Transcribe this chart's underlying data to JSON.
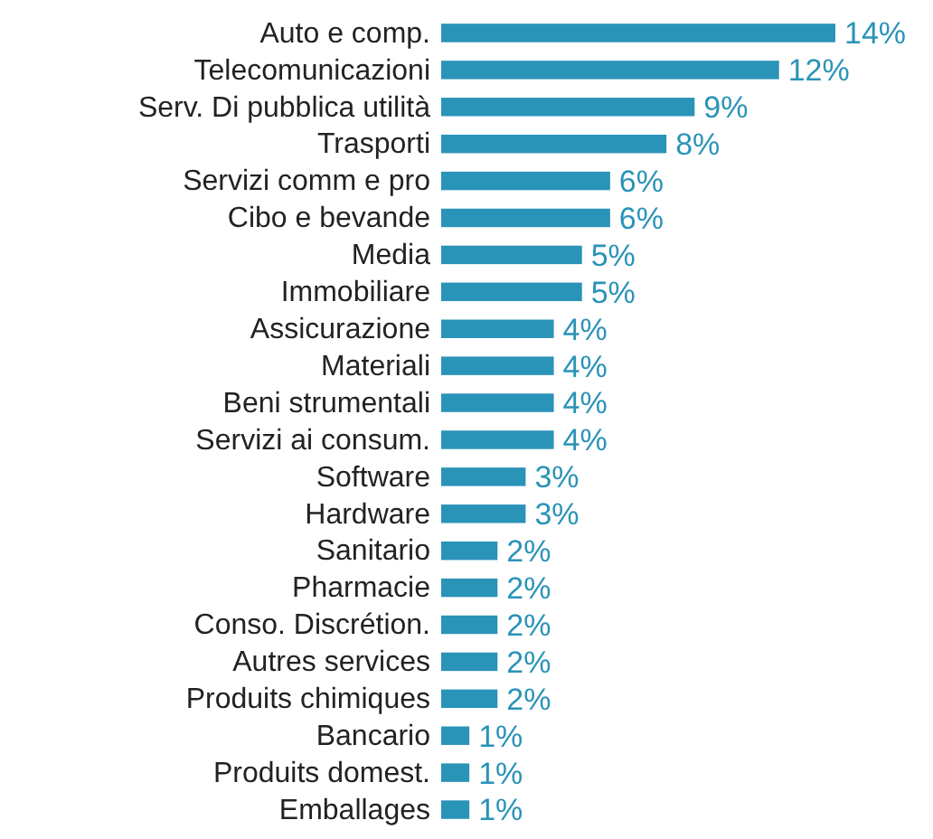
{
  "chart_data": {
    "type": "bar",
    "orientation": "horizontal",
    "categories": [
      "Auto e comp.",
      "Telecomunicazioni",
      "Serv. Di pubblica utilità",
      "Trasporti",
      "Servizi comm e pro",
      "Cibo e bevande",
      "Media",
      "Immobiliare",
      "Assicurazione",
      "Materiali",
      "Beni strumentali",
      "Servizi ai consum.",
      "Software",
      "Hardware",
      "Sanitario",
      "Pharmacie",
      "Conso. Discrétion.",
      "Autres services",
      "Produits chimiques",
      "Bancario",
      "Produits domest.",
      "Emballages"
    ],
    "values": [
      14,
      12,
      9,
      8,
      6,
      6,
      5,
      5,
      4,
      4,
      4,
      4,
      3,
      3,
      2,
      2,
      2,
      2,
      2,
      1,
      1,
      1
    ],
    "value_labels": [
      "14%",
      "12%",
      "9%",
      "8%",
      "6%",
      "6%",
      "5%",
      "5%",
      "4%",
      "4%",
      "4%",
      "4%",
      "3%",
      "3%",
      "2%",
      "2%",
      "2%",
      "2%",
      "2%",
      "1%",
      "1%",
      "1%"
    ],
    "color": "#2a93b8",
    "xlim": [
      0,
      14
    ],
    "tick_labels": "y",
    "grid": false
  }
}
